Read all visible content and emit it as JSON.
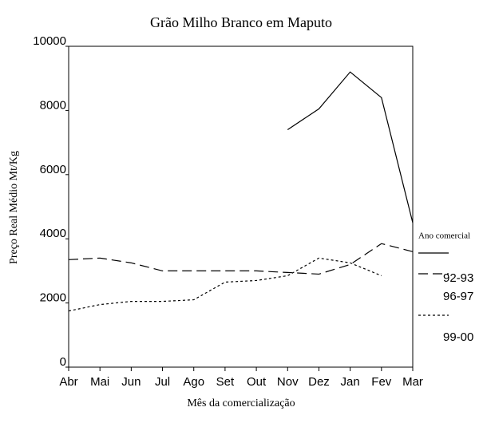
{
  "chart_data": {
    "type": "line",
    "title": "Grão Milho Branco em Maputo",
    "x_label": "Mês da comercialização",
    "y_label": "Preço Real Médio Mt/Kg",
    "legend_title": "Ano comercial",
    "legend_position": "right",
    "categories": [
      "Abr",
      "Mai",
      "Jun",
      "Jul",
      "Ago",
      "Set",
      "Out",
      "Nov",
      "Dez",
      "Jan",
      "Fev",
      "Mar"
    ],
    "ylim": [
      0,
      10000
    ],
    "yticks": [
      0,
      2000,
      4000,
      6000,
      8000,
      10000
    ],
    "grid": false,
    "series": [
      {
        "name": "92-93",
        "color": "#000000",
        "line_style": "solid",
        "values": [
          null,
          null,
          null,
          null,
          null,
          null,
          null,
          7400,
          8050,
          9200,
          8400,
          4500
        ]
      },
      {
        "name": "96-97",
        "color": "#000000",
        "line_style": "dashed",
        "values": [
          3350,
          3400,
          3250,
          3000,
          3000,
          3000,
          3000,
          2950,
          2900,
          3200,
          3850,
          3600
        ]
      },
      {
        "name": "99-00",
        "color": "#000000",
        "line_style": "dotted",
        "values": [
          1750,
          1950,
          2050,
          2050,
          2100,
          2650,
          2700,
          2850,
          3400,
          3250,
          2850,
          null
        ]
      }
    ]
  }
}
